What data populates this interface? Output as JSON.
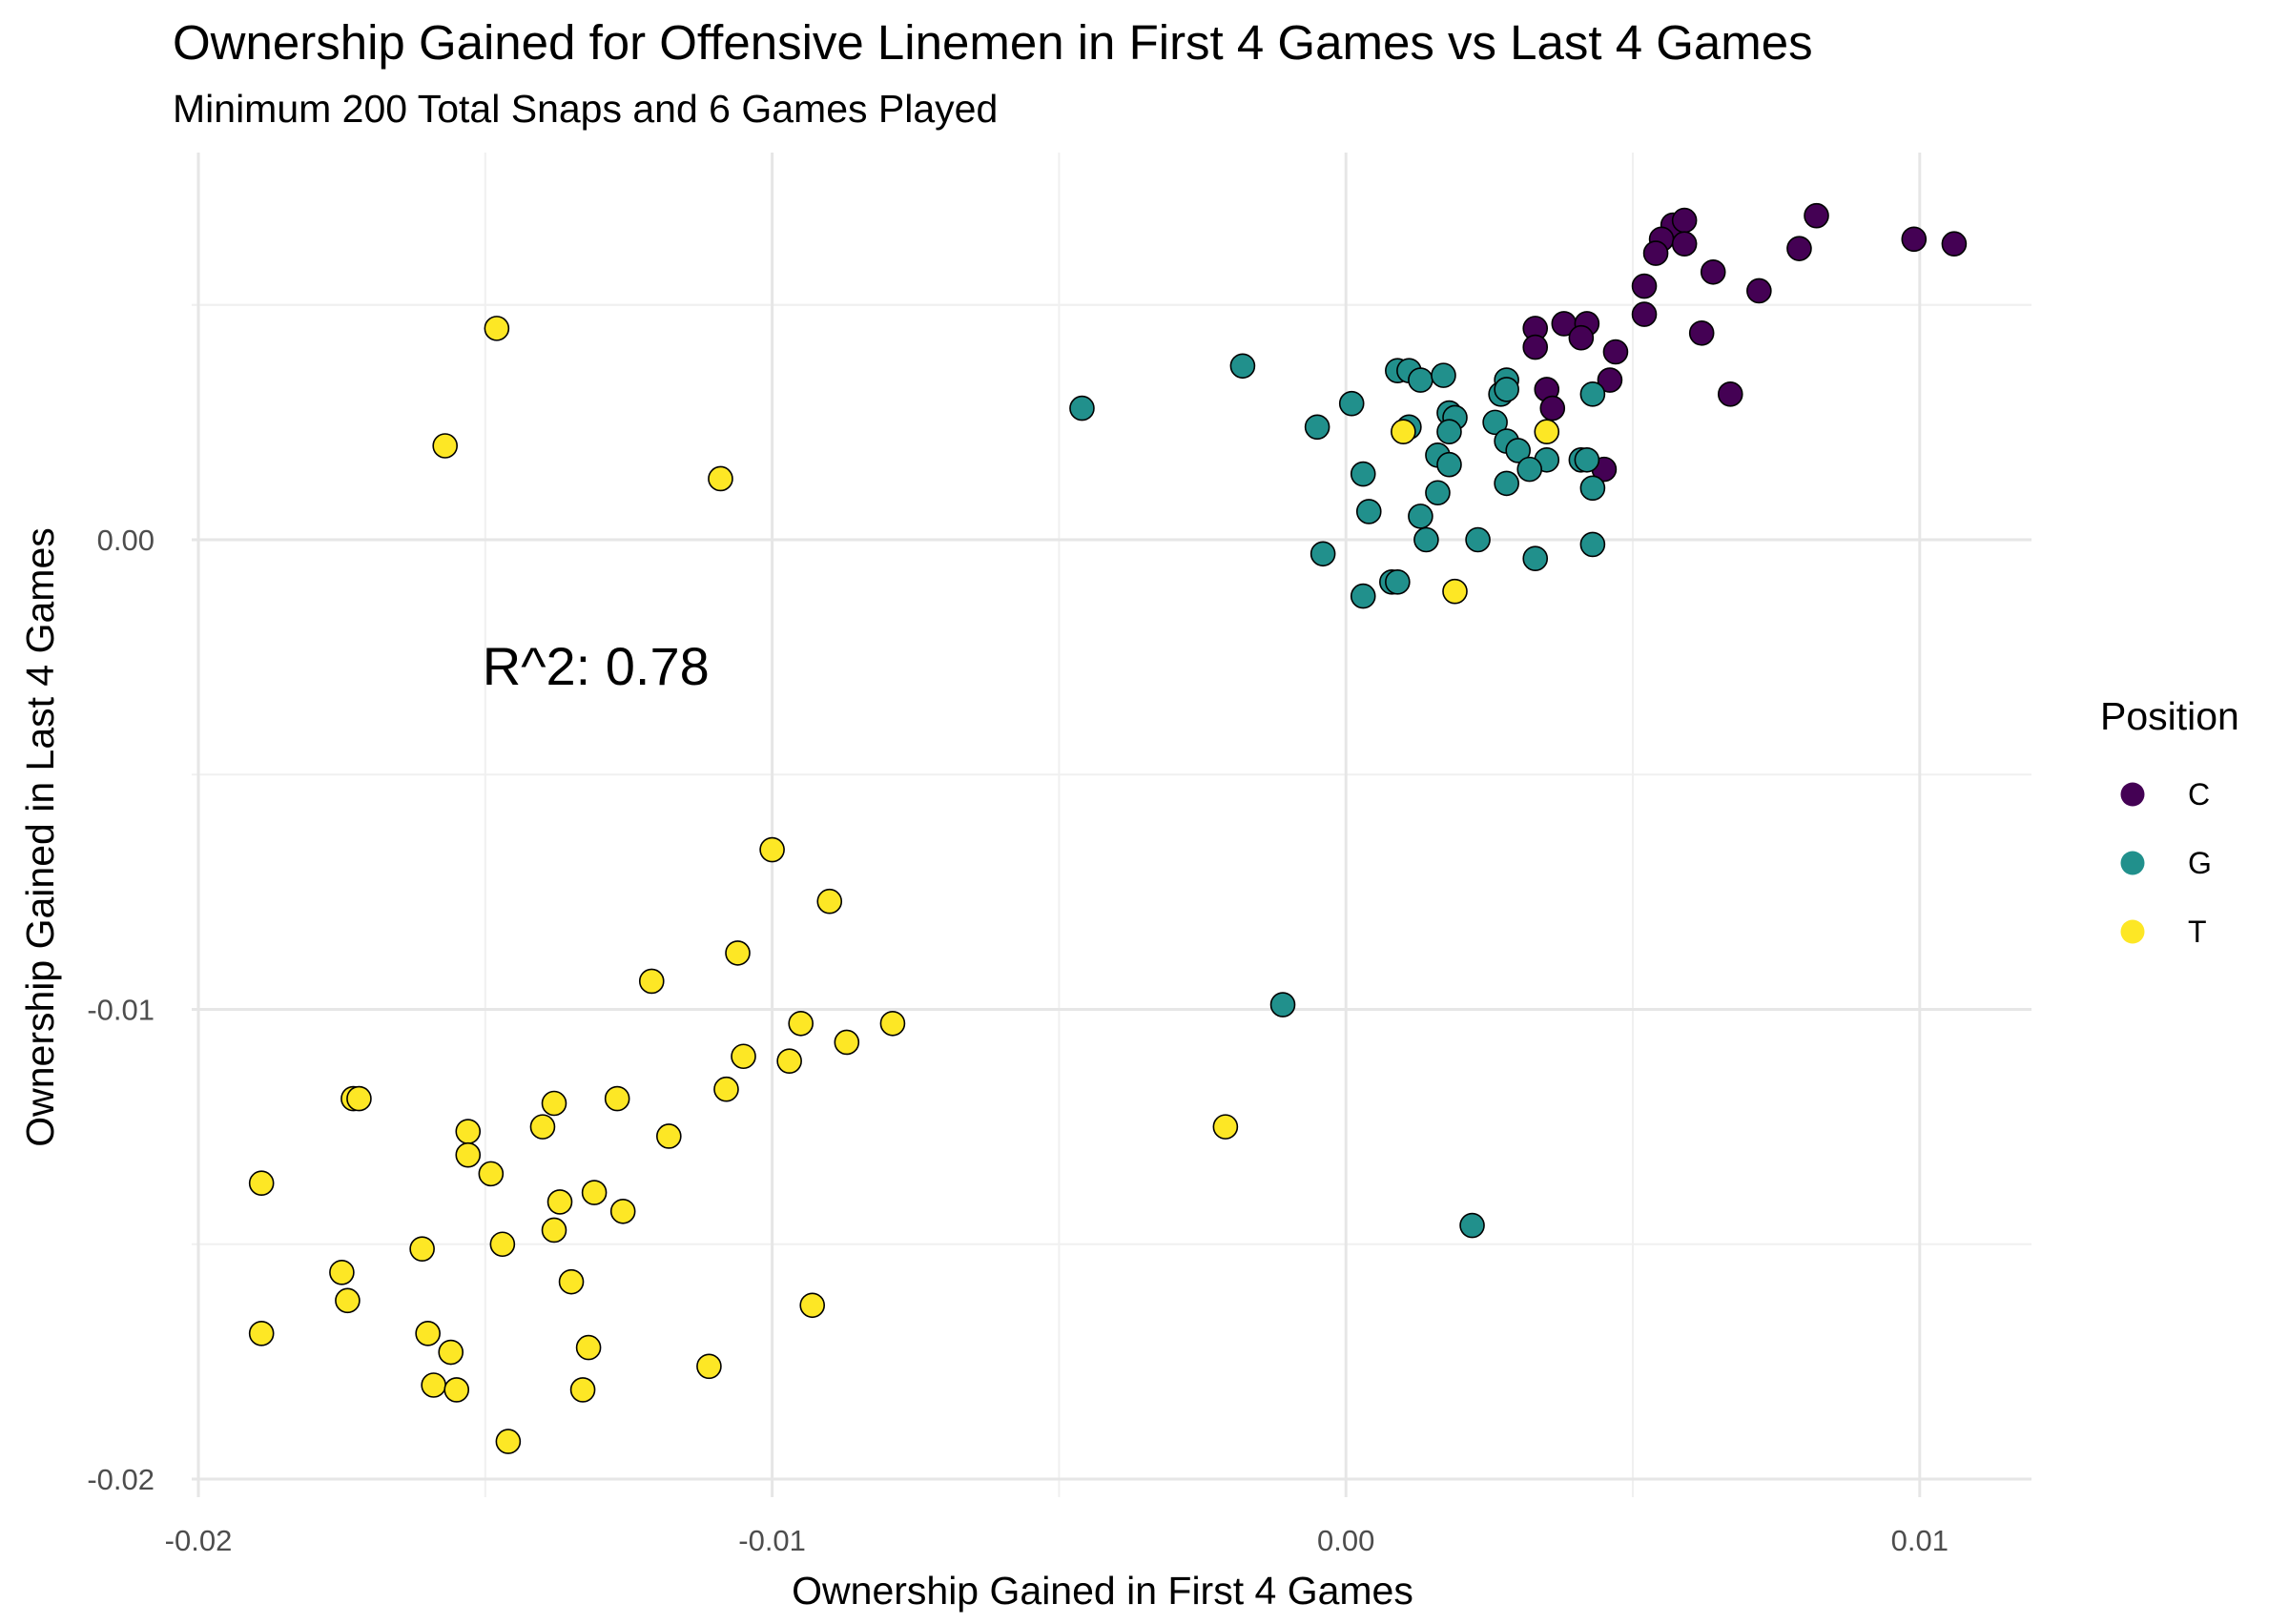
{
  "chart_data": {
    "type": "scatter",
    "title": "Ownership Gained for Offensive Linemen in First 4 Games vs Last 4 Games",
    "subtitle": "Minimum 200 Total Snaps and 6 Games Played",
    "xlabel": "Ownership Gained in First 4 Games",
    "ylabel": "Ownership Gained in Last 4 Games",
    "xlim": [
      -0.0205,
      0.012
    ],
    "ylim": [
      -0.0202,
      0.0081
    ],
    "x_ticks": [
      -0.02,
      -0.01,
      0.0,
      0.01
    ],
    "x_tick_labels": [
      "-0.02",
      "-0.01",
      "0.00",
      "0.01"
    ],
    "y_ticks": [
      -0.02,
      -0.01,
      0.0
    ],
    "y_tick_labels": [
      "-0.02",
      "-0.01",
      "0.00"
    ],
    "grid": true,
    "legend": {
      "title": "Position",
      "placement": "right"
    },
    "annotation": {
      "text": "R^2: 0.78",
      "x": -0.015,
      "y": -0.003
    },
    "series": [
      {
        "name": "C",
        "color": "#440154",
        "points": [
          [
            0.0057,
            0.0067
          ],
          [
            0.0055,
            0.0064
          ],
          [
            0.0059,
            0.0068
          ],
          [
            0.0059,
            0.0063
          ],
          [
            0.0054,
            0.0061
          ],
          [
            0.0064,
            0.0057
          ],
          [
            0.0082,
            0.0069
          ],
          [
            0.0079,
            0.0062
          ],
          [
            0.0099,
            0.0064
          ],
          [
            0.0106,
            0.0063
          ],
          [
            0.0052,
            0.0054
          ],
          [
            0.0052,
            0.0048
          ],
          [
            0.0072,
            0.0053
          ],
          [
            0.0062,
            0.0044
          ],
          [
            0.0038,
            0.0046
          ],
          [
            0.0042,
            0.0046
          ],
          [
            0.0033,
            0.0045
          ],
          [
            0.0041,
            0.0043
          ],
          [
            0.0033,
            0.0041
          ],
          [
            0.0047,
            0.004
          ],
          [
            0.0046,
            0.0034
          ],
          [
            0.0035,
            0.0032
          ],
          [
            0.0036,
            0.0028
          ],
          [
            0.0067,
            0.0031
          ],
          [
            0.0045,
            0.0015
          ]
        ]
      },
      {
        "name": "G",
        "color": "#21908C",
        "points": [
          [
            -0.0046,
            0.0028
          ],
          [
            -0.0018,
            0.0037
          ],
          [
            -0.0005,
            0.0024
          ],
          [
            0.0001,
            0.0029
          ],
          [
            0.0009,
            0.0036
          ],
          [
            0.0011,
            0.0036
          ],
          [
            0.0013,
            0.0034
          ],
          [
            0.0017,
            0.0035
          ],
          [
            0.0011,
            0.0024
          ],
          [
            0.0018,
            0.0027
          ],
          [
            0.0019,
            0.0026
          ],
          [
            0.0018,
            0.0023
          ],
          [
            0.0027,
            0.0031
          ],
          [
            0.0028,
            0.0034
          ],
          [
            0.0028,
            0.0032
          ],
          [
            0.0026,
            0.0025
          ],
          [
            0.0028,
            0.0021
          ],
          [
            0.003,
            0.0019
          ],
          [
            0.0043,
            0.0031
          ],
          [
            0.0035,
            0.0017
          ],
          [
            0.0032,
            0.0015
          ],
          [
            0.0041,
            0.0017
          ],
          [
            0.0042,
            0.0017
          ],
          [
            0.0016,
            0.0018
          ],
          [
            0.0018,
            0.0016
          ],
          [
            0.0003,
            0.0014
          ],
          [
            0.0028,
            0.0012
          ],
          [
            0.0043,
            0.0011
          ],
          [
            0.0016,
            0.001
          ],
          [
            0.0004,
            0.0006
          ],
          [
            0.0013,
            0.0005
          ],
          [
            0.0014,
            0.0
          ],
          [
            0.0023,
            0.0
          ],
          [
            0.0043,
            -0.0001
          ],
          [
            -0.0004,
            -0.0003
          ],
          [
            0.0033,
            -0.0004
          ],
          [
            0.0008,
            -0.0009
          ],
          [
            0.0009,
            -0.0009
          ],
          [
            0.0003,
            -0.0012
          ],
          [
            -0.0011,
            -0.0099
          ],
          [
            0.0022,
            -0.0146
          ]
        ]
      },
      {
        "name": "T",
        "color": "#FDE725",
        "points": [
          [
            -0.0148,
            0.0045
          ],
          [
            -0.0157,
            0.002
          ],
          [
            -0.0109,
            0.0013
          ],
          [
            0.001,
            0.0023
          ],
          [
            0.0035,
            0.0023
          ],
          [
            0.0019,
            -0.0011
          ],
          [
            -0.01,
            -0.0066
          ],
          [
            -0.009,
            -0.0077
          ],
          [
            -0.0121,
            -0.0094
          ],
          [
            -0.0106,
            -0.0088
          ],
          [
            -0.0079,
            -0.0103
          ],
          [
            -0.0095,
            -0.0103
          ],
          [
            -0.0087,
            -0.0107
          ],
          [
            -0.0105,
            -0.011
          ],
          [
            -0.0097,
            -0.0111
          ],
          [
            -0.0108,
            -0.0117
          ],
          [
            -0.0173,
            -0.0119
          ],
          [
            -0.0172,
            -0.0119
          ],
          [
            -0.0138,
            -0.012
          ],
          [
            -0.0127,
            -0.0119
          ],
          [
            -0.014,
            -0.0125
          ],
          [
            -0.0153,
            -0.0126
          ],
          [
            -0.0118,
            -0.0127
          ],
          [
            -0.0153,
            -0.0131
          ],
          [
            -0.0149,
            -0.0135
          ],
          [
            -0.0189,
            -0.0137
          ],
          [
            -0.0131,
            -0.0139
          ],
          [
            -0.0137,
            -0.0141
          ],
          [
            -0.0126,
            -0.0143
          ],
          [
            -0.0138,
            -0.0147
          ],
          [
            -0.0147,
            -0.015
          ],
          [
            -0.0161,
            -0.0151
          ],
          [
            -0.0021,
            -0.0125
          ],
          [
            -0.0175,
            -0.0156
          ],
          [
            -0.0135,
            -0.0158
          ],
          [
            -0.0174,
            -0.0162
          ],
          [
            -0.0093,
            -0.0163
          ],
          [
            -0.0189,
            -0.0169
          ],
          [
            -0.016,
            -0.0169
          ],
          [
            -0.0156,
            -0.0173
          ],
          [
            -0.0132,
            -0.0172
          ],
          [
            -0.0111,
            -0.0176
          ],
          [
            -0.0159,
            -0.018
          ],
          [
            -0.0133,
            -0.0181
          ],
          [
            -0.0155,
            -0.0181
          ],
          [
            -0.0146,
            -0.0192
          ]
        ]
      }
    ]
  }
}
